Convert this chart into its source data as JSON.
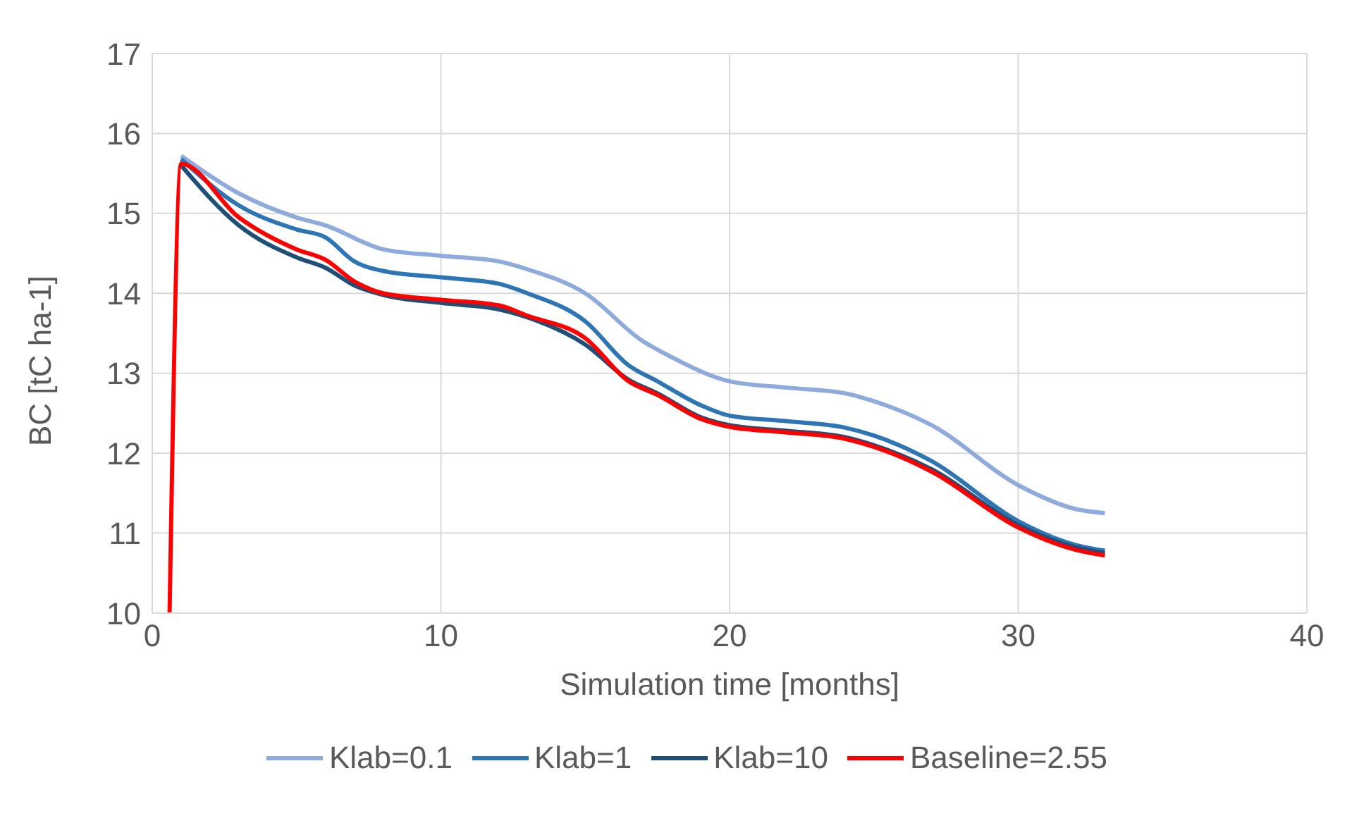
{
  "chart_data": {
    "type": "line",
    "xlabel": "Simulation time [months]",
    "ylabel": "BC [tC ha-1]",
    "xlim": [
      0,
      40
    ],
    "xticks": [
      0,
      10,
      20,
      30,
      40
    ],
    "ylim": [
      10,
      17
    ],
    "yticks": [
      10,
      11,
      12,
      13,
      14,
      15,
      16,
      17
    ],
    "grid": true,
    "legend": "bottom",
    "marker": "none",
    "line_style": "solid",
    "series": [
      {
        "name": "Klab=0.1",
        "color": "#8faadc",
        "x": [
          1,
          3,
          5,
          6,
          8,
          10,
          12,
          13,
          15,
          17,
          18,
          20,
          22,
          24,
          25,
          27,
          30,
          32,
          33
        ],
        "values": [
          15.72,
          15.25,
          14.95,
          14.85,
          14.55,
          14.47,
          14.4,
          14.3,
          14.0,
          13.4,
          13.2,
          12.9,
          12.82,
          12.75,
          12.65,
          12.35,
          11.6,
          11.3,
          11.25
        ]
      },
      {
        "name": "Klab=1",
        "color": "#2e75b6",
        "x": [
          1,
          3,
          5,
          6,
          7,
          8,
          10,
          12,
          13,
          15,
          16.5,
          17.5,
          19,
          20,
          22,
          24,
          25,
          27,
          30,
          32,
          33
        ],
        "values": [
          15.68,
          15.1,
          14.8,
          14.7,
          14.4,
          14.28,
          14.2,
          14.12,
          14.0,
          13.65,
          13.1,
          12.9,
          12.6,
          12.47,
          12.4,
          12.32,
          12.22,
          11.9,
          11.15,
          10.85,
          10.78
        ]
      },
      {
        "name": "Klab=10",
        "color": "#1f4e79",
        "x": [
          1,
          3,
          5,
          6,
          7,
          8,
          10,
          12,
          13,
          15,
          16.5,
          17.5,
          19,
          20,
          22,
          24,
          25,
          27,
          30,
          32,
          33
        ],
        "values": [
          15.6,
          14.85,
          14.45,
          14.32,
          14.1,
          13.98,
          13.88,
          13.8,
          13.7,
          13.36,
          12.92,
          12.75,
          12.45,
          12.35,
          12.28,
          12.2,
          12.1,
          11.8,
          11.1,
          10.82,
          10.75
        ]
      },
      {
        "name": "Baseline=2.55",
        "color": "#ff0000",
        "x": [
          0.6,
          1,
          3,
          5,
          6,
          7,
          8,
          10,
          12,
          13,
          15,
          16.5,
          17.5,
          19,
          20,
          22,
          24,
          25,
          27,
          30,
          32,
          33
        ],
        "values": [
          10,
          15.62,
          14.95,
          14.55,
          14.42,
          14.15,
          14.0,
          13.92,
          13.85,
          13.72,
          13.44,
          12.9,
          12.73,
          12.43,
          12.33,
          12.26,
          12.18,
          12.08,
          11.77,
          11.07,
          10.79,
          10.72
        ]
      }
    ]
  }
}
